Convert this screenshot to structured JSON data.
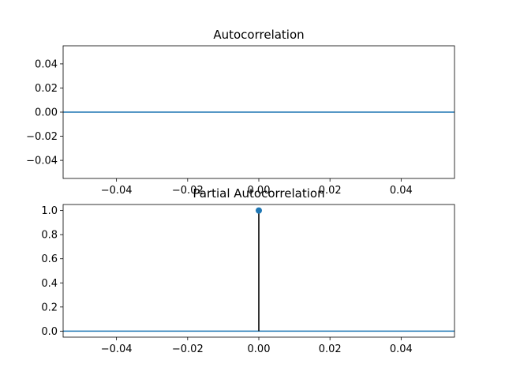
{
  "chart_data": [
    {
      "type": "line",
      "title": "Autocorrelation",
      "xlabel": "",
      "ylabel": "",
      "xlim": [
        -0.055,
        0.055
      ],
      "ylim": [
        -0.055,
        0.055
      ],
      "x_ticks": [
        -0.04,
        -0.02,
        0.0,
        0.02,
        0.04
      ],
      "x_tick_labels": [
        "−0.04",
        "−0.02",
        "0.00",
        "0.02",
        "0.04"
      ],
      "y_ticks": [
        -0.04,
        -0.02,
        0.0,
        0.02,
        0.04
      ],
      "y_tick_labels": [
        "−0.04",
        "−0.02",
        "0.00",
        "0.02",
        "0.04"
      ],
      "grid": false,
      "zero_line": 0,
      "stems": [],
      "line_color": "#1f77b4"
    },
    {
      "type": "stem",
      "title": "Partial Autocorrelation",
      "xlabel": "",
      "ylabel": "",
      "xlim": [
        -0.055,
        0.055
      ],
      "ylim": [
        -0.05,
        1.05
      ],
      "x_ticks": [
        -0.04,
        -0.02,
        0.0,
        0.02,
        0.04
      ],
      "x_tick_labels": [
        "−0.04",
        "−0.02",
        "0.00",
        "0.02",
        "0.04"
      ],
      "y_ticks": [
        0.0,
        0.2,
        0.4,
        0.6,
        0.8,
        1.0
      ],
      "y_tick_labels": [
        "0.0",
        "0.2",
        "0.4",
        "0.6",
        "0.8",
        "1.0"
      ],
      "grid": false,
      "zero_line": 0,
      "stems": [
        {
          "x": 0.0,
          "y": 1.0
        }
      ],
      "line_color": "#1f77b4",
      "stem_color": "#000000",
      "marker_color": "#1f77b4"
    }
  ]
}
